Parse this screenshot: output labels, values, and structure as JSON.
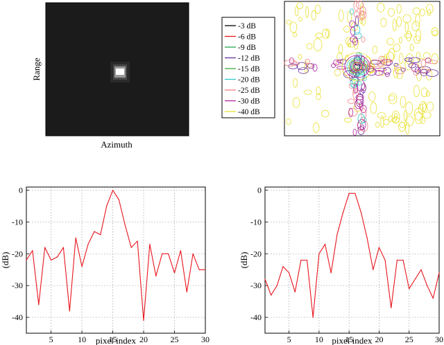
{
  "image_panel": {
    "xlabel": "Azimuth",
    "ylabel": "Range"
  },
  "contour_panel": {
    "legend": [
      {
        "label": "-3 dB",
        "color": "#000000"
      },
      {
        "label": "-6 dB",
        "color": "#e8141c"
      },
      {
        "label": "-9 dB",
        "color": "#1fa84a"
      },
      {
        "label": "-12 dB",
        "color": "#6a2fa0"
      },
      {
        "label": "-15 dB",
        "color": "#3caa3c"
      },
      {
        "label": "-20 dB",
        "color": "#30c8c8"
      },
      {
        "label": "-25 dB",
        "color": "#f08080"
      },
      {
        "label": "-30 dB",
        "color": "#b0209a"
      },
      {
        "label": "-40 dB",
        "color": "#e8e030"
      }
    ]
  },
  "chart_data": [
    {
      "type": "line",
      "xlabel": "pixel index",
      "ylabel": "(dB)",
      "xlim": [
        1,
        30
      ],
      "ylim": [
        -45,
        1
      ],
      "xticks": [
        5,
        10,
        15,
        20,
        25,
        30
      ],
      "yticks": [
        0,
        -10,
        -20,
        -30,
        -40
      ],
      "grid": true,
      "color": "#e8141c",
      "x": [
        1,
        2,
        3,
        4,
        5,
        6,
        7,
        8,
        9,
        10,
        11,
        12,
        13,
        14,
        15,
        16,
        17,
        18,
        19,
        20,
        21,
        22,
        23,
        24,
        25,
        26,
        27,
        28,
        29,
        30
      ],
      "y": [
        -22,
        -19,
        -36,
        -18,
        -22,
        -21,
        -18,
        -38,
        -15,
        -24,
        -17,
        -13,
        -14,
        -5,
        0,
        -3,
        -11,
        -18,
        -16,
        -41,
        -17,
        -27,
        -20,
        -20,
        -26,
        -19,
        -32,
        -20,
        -25,
        -25
      ]
    },
    {
      "type": "line",
      "xlabel": "pixel index",
      "ylabel": "(dB)",
      "xlim": [
        1,
        30
      ],
      "ylim": [
        -45,
        1
      ],
      "xticks": [
        5,
        10,
        15,
        20,
        25,
        30
      ],
      "yticks": [
        0,
        -10,
        -20,
        -30,
        -40
      ],
      "grid": true,
      "color": "#e8141c",
      "x": [
        1,
        2,
        3,
        4,
        5,
        6,
        7,
        8,
        9,
        10,
        11,
        12,
        13,
        14,
        15,
        16,
        17,
        18,
        19,
        20,
        21,
        22,
        23,
        24,
        25,
        26,
        27,
        28,
        29,
        30
      ],
      "y": [
        -28,
        -33,
        -30,
        -24,
        -26,
        -32,
        -22,
        -22,
        -40,
        -20,
        -17,
        -26,
        -14,
        -7,
        -1,
        -1,
        -7,
        -15,
        -25,
        -18,
        -22,
        -37,
        -22,
        -22,
        -31,
        -28,
        -25,
        -30,
        -34,
        -26
      ]
    }
  ]
}
